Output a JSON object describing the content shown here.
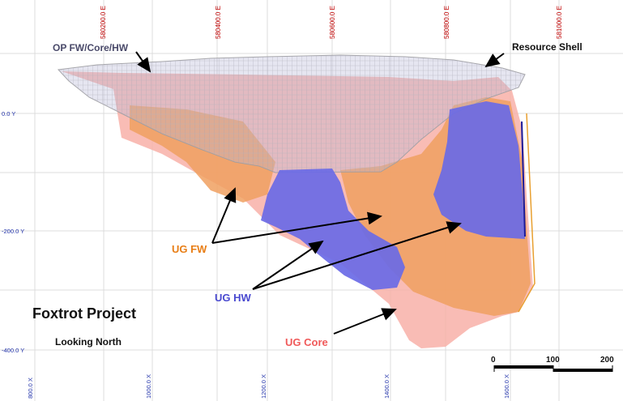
{
  "title": "Foxtrot Project",
  "subtitle": "Looking North",
  "easting_labels": [
    "580200.0 E",
    "580400.0 E",
    "580600.0 E",
    "580800.0 E",
    "581000.0 E"
  ],
  "elevation_labels": [
    "0.0 Y",
    "-200.0 Y",
    "-400.0 Y"
  ],
  "bottom_labels": [
    "800.0 X",
    "1000.0 X",
    "1200.0 X",
    "1400.0 X",
    "1600.0 X"
  ],
  "scale_bar": {
    "labels": [
      "0",
      "100",
      "200"
    ]
  },
  "annotations": {
    "op": "OP FW/Core/HW",
    "resource": "Resource Shell",
    "ug_fw": "UG FW",
    "ug_hw": "UG HW",
    "ug_core": "UG Core"
  },
  "colors": {
    "ug_fw": "#f0a060",
    "ug_hw": "#6a6ae6",
    "ug_core": "#f8b0a8",
    "resource_shell": "#c8c8c8",
    "ug_fw_label": "#e87e16",
    "ug_hw_label": "#4a4ad0",
    "ug_core_label": "#f05a5a"
  }
}
